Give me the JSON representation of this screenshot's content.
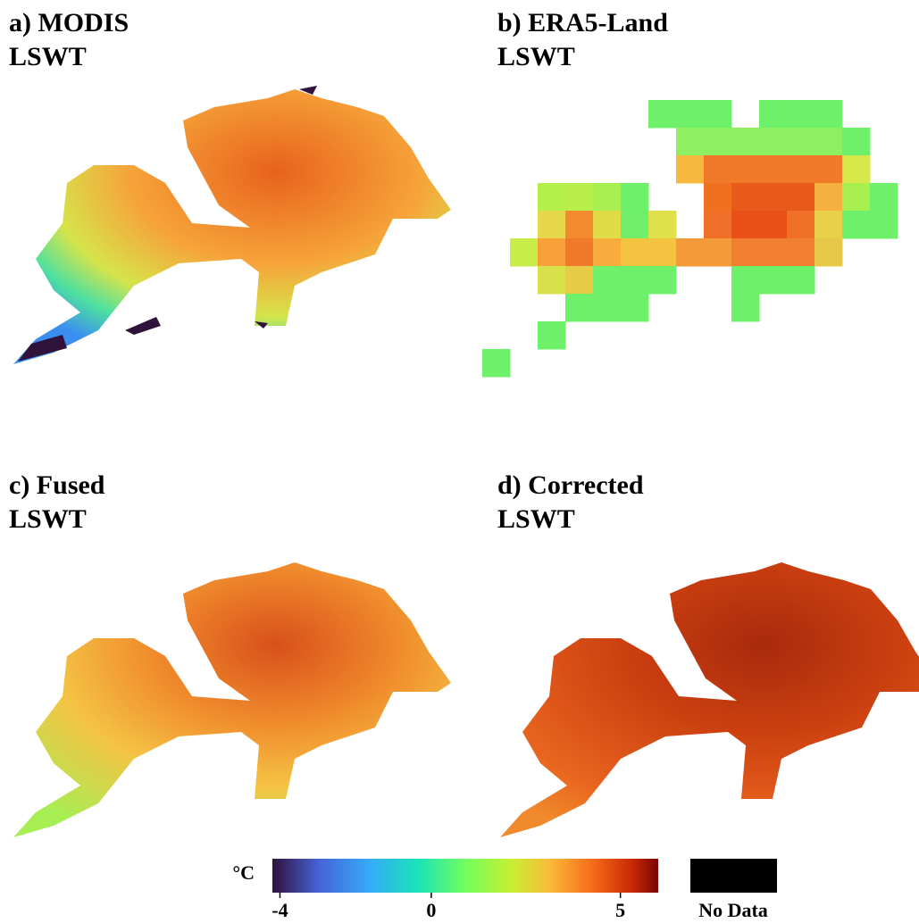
{
  "panels": [
    {
      "label": "a) MODIS",
      "sublabel": "LSWT"
    },
    {
      "label": "b) ERA5-Land",
      "sublabel": "LSWT"
    },
    {
      "label": "c) Fused",
      "sublabel": "LSWT"
    },
    {
      "label": "d) Corrected",
      "sublabel": "LSWT"
    }
  ],
  "colorbar": {
    "unit": "°C",
    "lim": [
      -4.2,
      6
    ],
    "ticks": [
      -4,
      0,
      5
    ],
    "no_data": "No Data"
  }
}
